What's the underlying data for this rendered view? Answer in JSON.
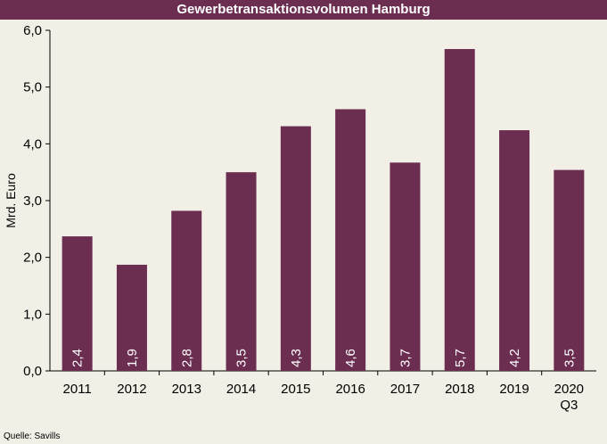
{
  "chart_data": {
    "type": "bar",
    "title": "Gewerbetransaktionsvolumen Hamburg",
    "categories": [
      "2011",
      "2012",
      "2013",
      "2014",
      "2015",
      "2016",
      "2017",
      "2018",
      "2019",
      "2020\nQ3"
    ],
    "values": [
      2.37,
      1.87,
      2.82,
      3.5,
      4.31,
      4.61,
      3.67,
      5.67,
      4.24,
      3.54
    ],
    "data_labels": [
      "2,4",
      "1,9",
      "2,8",
      "3,5",
      "4,3",
      "4,6",
      "3,7",
      "5,7",
      "4,2",
      "3,5"
    ],
    "ylabel": "Mrd. Euro",
    "xlabel": "",
    "ylim": [
      0,
      6
    ],
    "yticks": [
      "0,0",
      "1,0",
      "2,0",
      "3,0",
      "4,0",
      "5,0",
      "6,0"
    ],
    "grid": false,
    "bar_color": "#6b2d50",
    "label_color": "#ffffff",
    "background": "#f2efe7"
  },
  "source": "Quelle: Savills"
}
